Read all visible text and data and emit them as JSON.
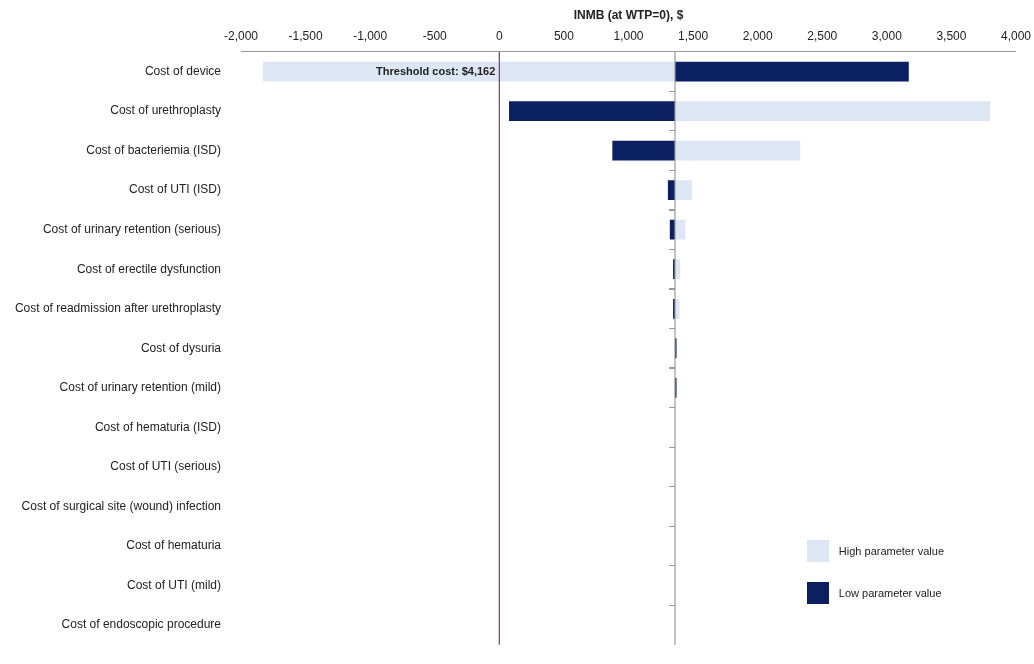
{
  "chart_data": {
    "type": "bar",
    "orientation": "horizontal",
    "xlabel": "INMB (at WTP=0), $",
    "categories": [
      "Cost of device",
      "Cost of urethroplasty",
      "Cost of bacteriemia (ISD)",
      "Cost of UTI (ISD)",
      "Cost of urinary retention (serious)",
      "Cost of erectile dysfunction",
      "Cost of readmission after urethroplasty",
      "Cost of dysuria",
      "Cost of urinary retention (mild)",
      "Cost of hematuria (ISD)",
      "Cost of UTI (serious)",
      "Cost of surgical site (wound) infection",
      "Cost of hematuria",
      "Cost of UTI (mild)",
      "Cost of endoscopic procedure"
    ],
    "series": [
      {
        "name": "High parameter value",
        "color": "#dce6f4",
        "base": [
          -1830,
          1360,
          1360,
          1360,
          1360,
          1360,
          1360,
          null,
          null,
          null,
          null,
          null,
          null,
          null,
          null
        ],
        "values": [
          3190,
          2440,
          970,
          130,
          80,
          40,
          35,
          null,
          null,
          null,
          null,
          null,
          null,
          null,
          null
        ]
      },
      {
        "name": "Low parameter value",
        "color": "#0b2060",
        "base": [
          1360,
          75,
          875,
          1305,
          1320,
          1345,
          1345,
          1360,
          1360,
          null,
          null,
          null,
          null,
          null,
          null
        ],
        "values": [
          1810,
          1285,
          485,
          55,
          40,
          15,
          15,
          12,
          12,
          null,
          null,
          null,
          null,
          null,
          null
        ]
      }
    ],
    "xlim": [
      -2000,
      4000
    ],
    "xticks": [
      {
        "value": -2000,
        "label": "-2,000"
      },
      {
        "value": -1500,
        "label": "-1,500"
      },
      {
        "value": -1000,
        "label": "-1,000"
      },
      {
        "value": -500,
        "label": "-500"
      },
      0,
      500,
      {
        "value": 1000,
        "label": "1,000"
      },
      {
        "value": 1500,
        "label": "1,500"
      },
      {
        "value": 2000,
        "label": "2,000"
      },
      {
        "value": 2500,
        "label": "2,500"
      },
      {
        "value": 3000,
        "label": "3,000"
      },
      {
        "value": 3500,
        "label": "3,500"
      },
      {
        "value": 4000,
        "label": "4,000"
      }
    ],
    "ref_lines": [
      {
        "axis": "x",
        "value": 0,
        "color": "#8b2f7a"
      },
      {
        "axis": "x",
        "value": 1360
      }
    ],
    "annotations": [
      {
        "text": "Threshold cost: $4,162",
        "x": 0,
        "y": "Cost of device"
      }
    ],
    "grid": false,
    "legend": "bottom right"
  }
}
